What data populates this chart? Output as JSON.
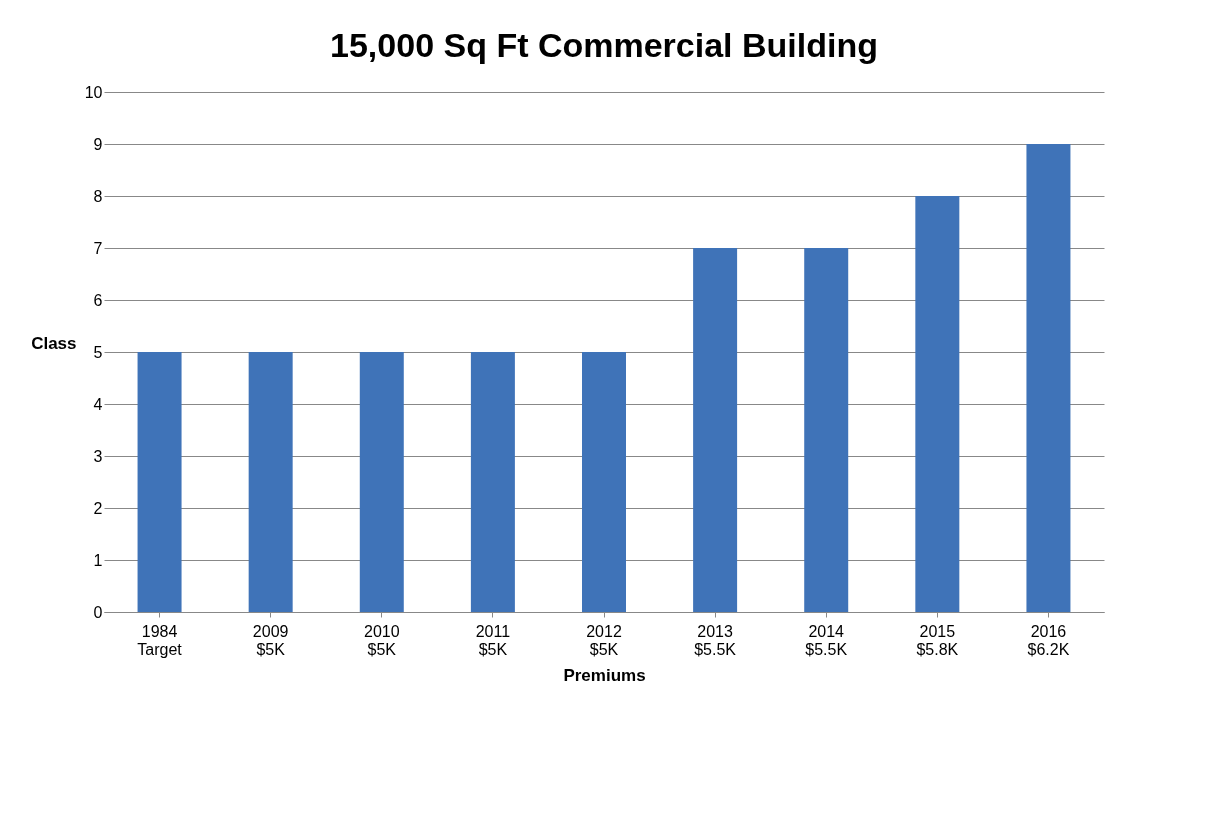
{
  "chart_data": {
    "type": "bar",
    "title": "15,000 Sq Ft Commercial Building",
    "xlabel": "Premiums",
    "ylabel": "Class",
    "categories": [
      "1984\nTarget",
      "2009\n$5K",
      "2010\n$5K",
      "2011\n$5K",
      "2012\n$5K",
      "2013\n$5.5K",
      "2014\n$5.5K",
      "2015\n$5.8K",
      "2016\n$6.2K"
    ],
    "values": [
      5,
      5,
      5,
      5,
      5,
      7,
      7,
      8,
      9
    ],
    "color": "#3f73b8",
    "ylim": [
      0,
      10
    ],
    "yticks": [
      0,
      1,
      2,
      3,
      4,
      5,
      6,
      7,
      8,
      9,
      10
    ],
    "grid": "y"
  }
}
